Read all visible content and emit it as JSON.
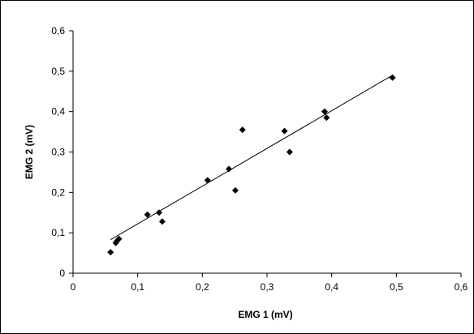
{
  "chart_data": {
    "type": "scatter",
    "title": "",
    "xlabel": "EMG 1 (mV)",
    "ylabel": "EMG 2 (mV)",
    "xlim": [
      0,
      0.6
    ],
    "ylim": [
      0,
      0.6
    ],
    "x_ticks": [
      "0",
      "0,1",
      "0,2",
      "0,3",
      "0,4",
      "0,5",
      "0,6"
    ],
    "y_ticks": [
      "0",
      "0,1",
      "0,2",
      "0,3",
      "0,4",
      "0,5",
      "0,6"
    ],
    "grid": false,
    "legend": "none",
    "marker": "diamond",
    "marker_color": "#000000",
    "series": [
      {
        "points": [
          {
            "x": 0.058,
            "y": 0.052
          },
          {
            "x": 0.066,
            "y": 0.075
          },
          {
            "x": 0.068,
            "y": 0.08
          },
          {
            "x": 0.071,
            "y": 0.085
          },
          {
            "x": 0.115,
            "y": 0.145
          },
          {
            "x": 0.133,
            "y": 0.15
          },
          {
            "x": 0.138,
            "y": 0.128
          },
          {
            "x": 0.208,
            "y": 0.23
          },
          {
            "x": 0.241,
            "y": 0.258
          },
          {
            "x": 0.251,
            "y": 0.205
          },
          {
            "x": 0.262,
            "y": 0.355
          },
          {
            "x": 0.327,
            "y": 0.352
          },
          {
            "x": 0.335,
            "y": 0.3
          },
          {
            "x": 0.389,
            "y": 0.4
          },
          {
            "x": 0.392,
            "y": 0.385
          },
          {
            "x": 0.494,
            "y": 0.484
          }
        ]
      }
    ],
    "trendline": {
      "x": [
        0.058,
        0.494
      ],
      "y": [
        0.083,
        0.49
      ],
      "color": "#000000"
    }
  }
}
